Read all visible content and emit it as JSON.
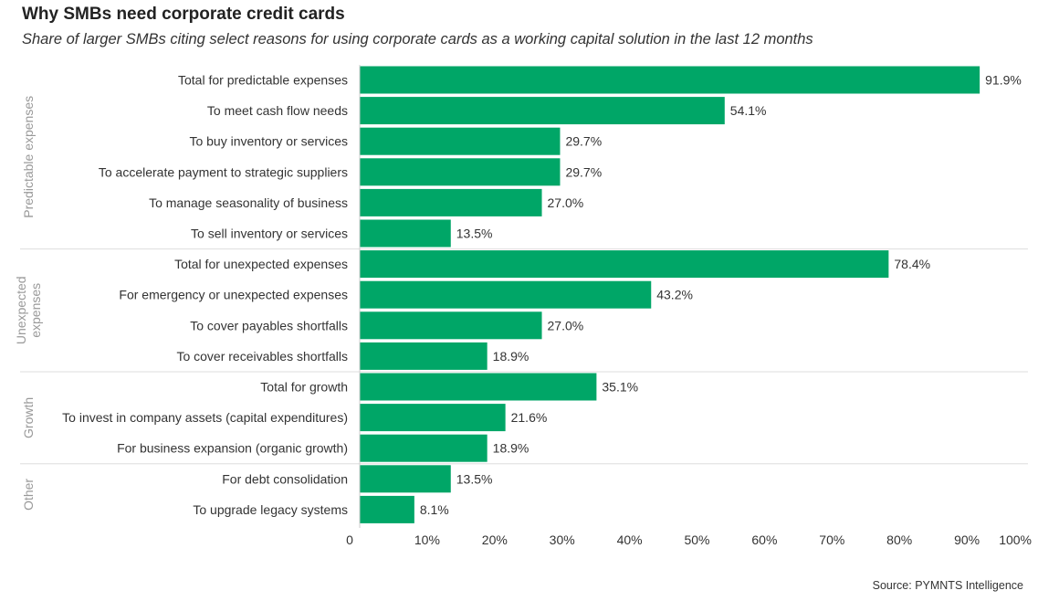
{
  "source": "Source: PYMNTS Intelligence",
  "chart_data": {
    "type": "bar",
    "orientation": "horizontal",
    "title": "Why SMBs need corporate credit cards",
    "subtitle": "Share of larger SMBs citing select reasons for using corporate cards as a working capital solution in the last 12 months",
    "xlim": [
      0,
      100
    ],
    "x_ticks": [
      0,
      10,
      20,
      30,
      40,
      50,
      60,
      70,
      80,
      90,
      100
    ],
    "x_tick_labels": [
      "0",
      "10%",
      "20%",
      "30%",
      "40%",
      "50%",
      "60%",
      "70%",
      "80%",
      "90%",
      "100%"
    ],
    "bar_color": "#00a667",
    "groups": [
      {
        "name": "Predictable expenses",
        "label_lines": [
          "Predictable expenses"
        ],
        "items": [
          {
            "category": "Total for predictable expenses",
            "value": 91.9,
            "label": "91.9%"
          },
          {
            "category": "To meet cash flow needs",
            "value": 54.1,
            "label": "54.1%"
          },
          {
            "category": "To buy inventory or services",
            "value": 29.7,
            "label": "29.7%"
          },
          {
            "category": "To accelerate payment to strategic suppliers",
            "value": 29.7,
            "label": "29.7%"
          },
          {
            "category": "To manage seasonality of business",
            "value": 27.0,
            "label": "27.0%"
          },
          {
            "category": "To sell inventory or services",
            "value": 13.5,
            "label": "13.5%"
          }
        ]
      },
      {
        "name": "Unexpected expenses",
        "label_lines": [
          "Unexpected",
          "expenses"
        ],
        "items": [
          {
            "category": "Total for unexpected expenses",
            "value": 78.4,
            "label": "78.4%"
          },
          {
            "category": "For emergency or unexpected expenses",
            "value": 43.2,
            "label": "43.2%"
          },
          {
            "category": "To cover payables shortfalls",
            "value": 27.0,
            "label": "27.0%"
          },
          {
            "category": "To cover receivables shortfalls",
            "value": 18.9,
            "label": "18.9%"
          }
        ]
      },
      {
        "name": "Growth",
        "label_lines": [
          "Growth"
        ],
        "items": [
          {
            "category": "Total for growth",
            "value": 35.1,
            "label": "35.1%"
          },
          {
            "category": "To invest in company assets (capital expenditures)",
            "value": 21.6,
            "label": "21.6%"
          },
          {
            "category": "For business expansion (organic growth)",
            "value": 18.9,
            "label": "18.9%"
          }
        ]
      },
      {
        "name": "Other",
        "label_lines": [
          "Other"
        ],
        "items": [
          {
            "category": "For debt consolidation",
            "value": 13.5,
            "label": "13.5%"
          },
          {
            "category": "To upgrade legacy systems",
            "value": 8.1,
            "label": "8.1%"
          }
        ]
      }
    ]
  }
}
